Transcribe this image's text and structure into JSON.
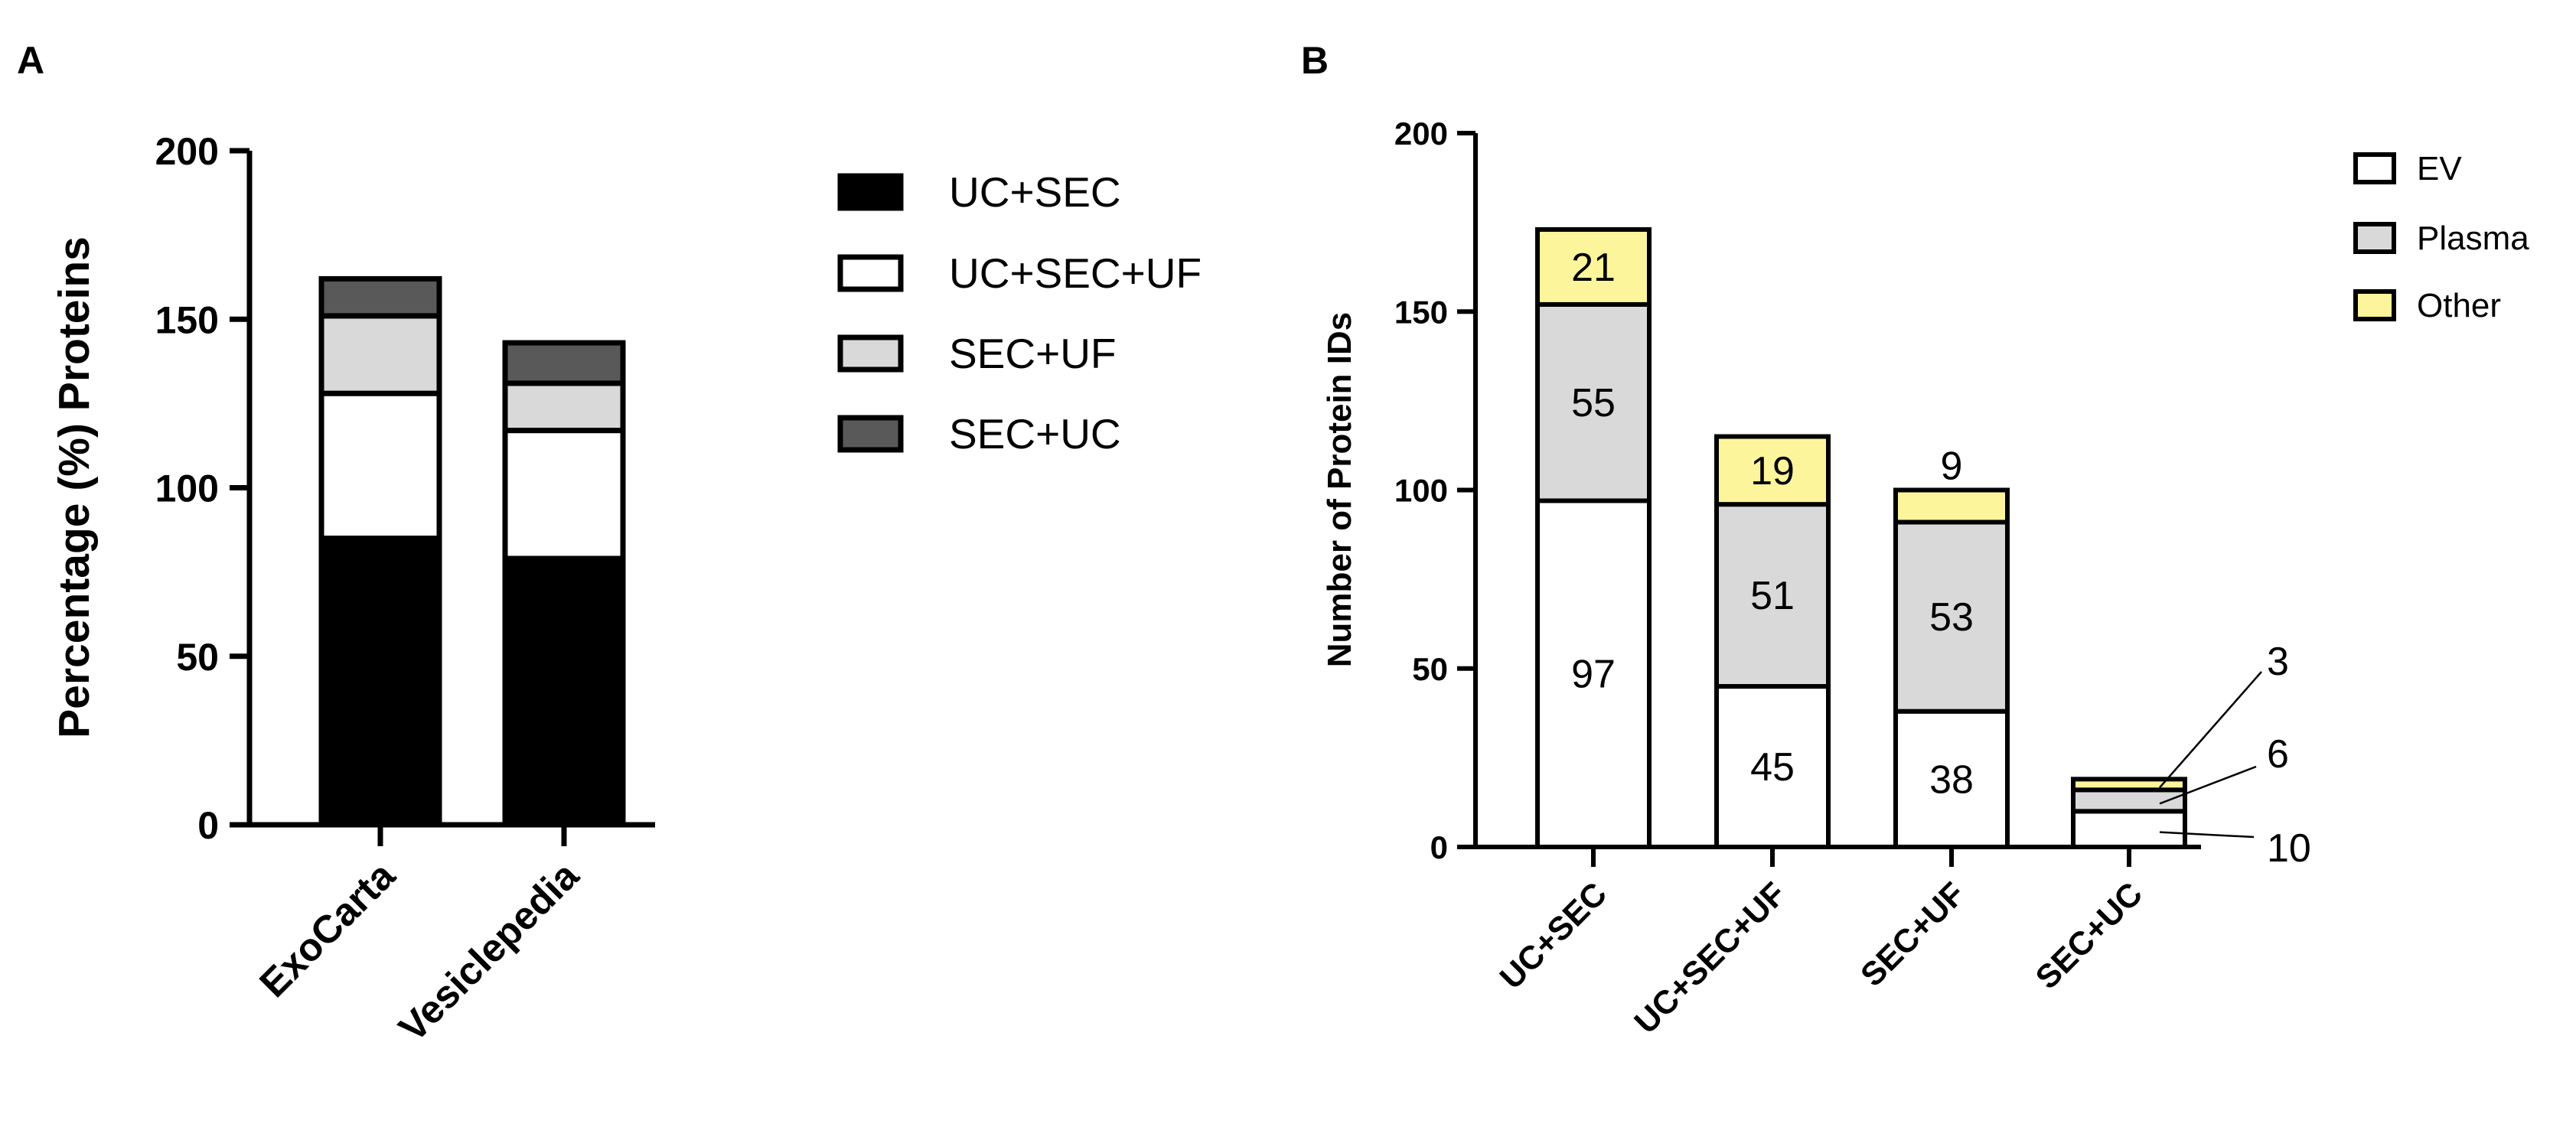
{
  "panels": {
    "a_label": "A",
    "b_label": "B"
  },
  "colors": {
    "uc_sec": "#000000",
    "uc_sec_uf": "#ffffff",
    "sec_uf": "#d9d9d9",
    "sec_uc": "#595959",
    "ev": "#ffffff",
    "plasma": "#d9d9d9",
    "other": "#fdf59b"
  },
  "chart_data": [
    {
      "panel": "A",
      "type": "bar",
      "stacked": true,
      "categories": [
        "ExoCarta",
        "Vesiclepedia"
      ],
      "series": [
        {
          "name": "UC+SEC",
          "values": [
            85,
            79
          ]
        },
        {
          "name": "UC+SEC+UF",
          "values": [
            43,
            38
          ]
        },
        {
          "name": "SEC+UF",
          "values": [
            23,
            14
          ]
        },
        {
          "name": "SEC+UC",
          "values": [
            11,
            12
          ]
        }
      ],
      "ylabel": "Percentage (%)  Proteins",
      "xlabel": "",
      "ylim": [
        0,
        200
      ],
      "yticks": [
        "0",
        "50",
        "100",
        "150",
        "200"
      ],
      "legend": "right",
      "grid": false
    },
    {
      "panel": "B",
      "type": "bar",
      "stacked": true,
      "categories": [
        "UC+SEC",
        "UC+SEC+UF",
        "SEC+UF",
        "SEC+UC"
      ],
      "series": [
        {
          "name": "EV",
          "values": [
            97,
            45,
            38,
            10
          ],
          "labels": [
            "97",
            "45",
            "38",
            "10"
          ]
        },
        {
          "name": "Plasma",
          "values": [
            55,
            51,
            53,
            6
          ],
          "labels": [
            "55",
            "51",
            "53",
            "6"
          ]
        },
        {
          "name": "Other",
          "values": [
            21,
            19,
            9,
            3
          ],
          "labels": [
            "21",
            "19",
            "9",
            "3"
          ]
        }
      ],
      "ylabel": "Number of Protein IDs",
      "xlabel": "",
      "ylim": [
        0,
        200
      ],
      "yticks": [
        "0",
        "50",
        "100",
        "150",
        "200"
      ],
      "legend": "top-right",
      "grid": false
    }
  ]
}
